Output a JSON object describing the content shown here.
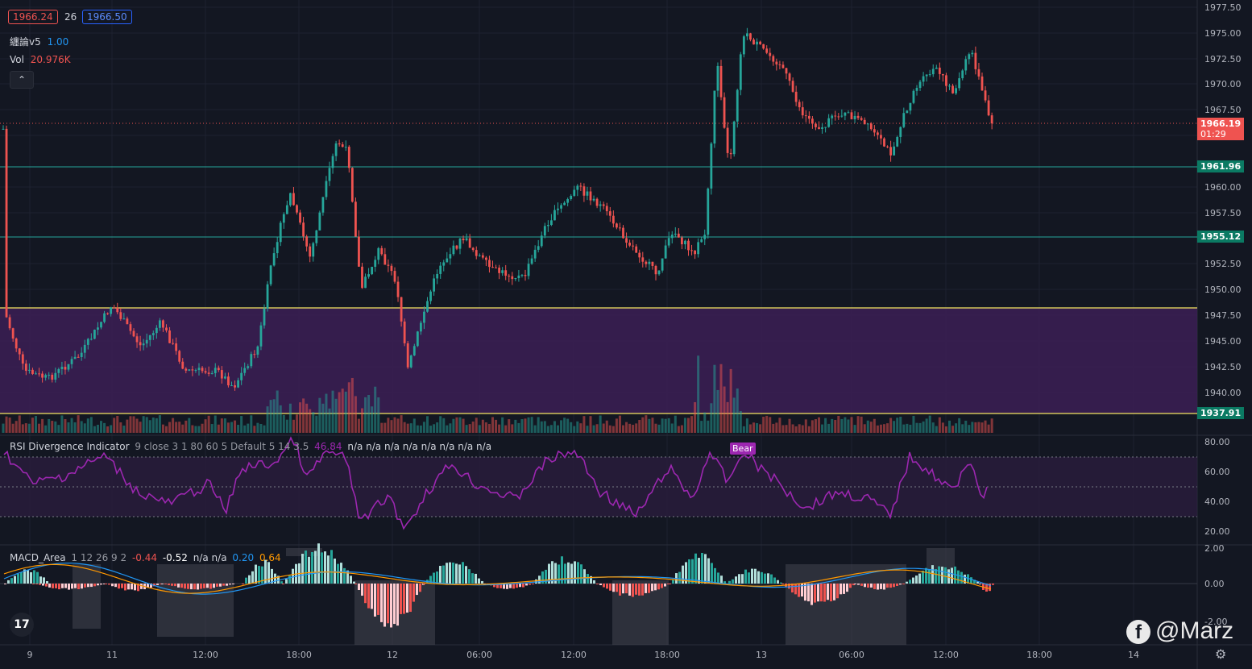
{
  "header": {
    "bid": "1966.24",
    "spread": "26",
    "ask": "1966.50"
  },
  "indicators": {
    "chan_name": "纏論v5",
    "chan_value": "1.00",
    "vol_label": "Vol",
    "vol_value": "20.976K",
    "rsi_label": "RSI Divergence Indicator",
    "rsi_params": "9 close 3 1 80 60 5 Default 5 14 3.5",
    "rsi_value": "46.84",
    "rsi_na": "n/a n/a n/a n/a n/a n/a n/a n/a",
    "rsi_bear": "Bear",
    "macd_label": "MACD_Area",
    "macd_params": "1 12 26 9 2",
    "macd_v1": "-0.44",
    "macd_v2": "-0.52",
    "macd_na": "n/a n/a",
    "macd_v3": "0.20",
    "macd_v4": "0.64"
  },
  "price_axis": [
    "1977.50",
    "1975.00",
    "1972.50",
    "1970.00",
    "1967.50",
    "1960.00",
    "1957.50",
    "1952.50",
    "1950.00",
    "1947.50",
    "1945.00",
    "1942.50",
    "1940.00"
  ],
  "price_tags": {
    "current": "1966.19",
    "countdown": "01:29",
    "level1": "1961.96",
    "level2": "1955.12",
    "level3": "1937.91"
  },
  "rsi_axis": [
    "80.00",
    "60.00",
    "40.00",
    "20.00"
  ],
  "macd_axis": [
    "2.00",
    "0.00",
    "-2.00"
  ],
  "time_axis": [
    "9",
    "11",
    "12:00",
    "18:00",
    "12",
    "06:00",
    "12:00",
    "18:00",
    "13",
    "06:00",
    "12:00",
    "18:00",
    "14"
  ],
  "watermark": "@Marz",
  "colors": {
    "bg": "#131722",
    "up": "#26a69a",
    "down": "#ef5350",
    "rsi": "#9c27b0",
    "zone": "#3c1f55",
    "yellow": "#f5e663",
    "teal_line": "#26a69a",
    "macd_blue": "#2196f3",
    "macd_orange": "#ff9800"
  },
  "icons": {
    "collapse": "chevron-up-icon",
    "logo": "tradingview-logo-icon",
    "settings": "gear-icon",
    "facebook": "facebook-icon"
  }
}
